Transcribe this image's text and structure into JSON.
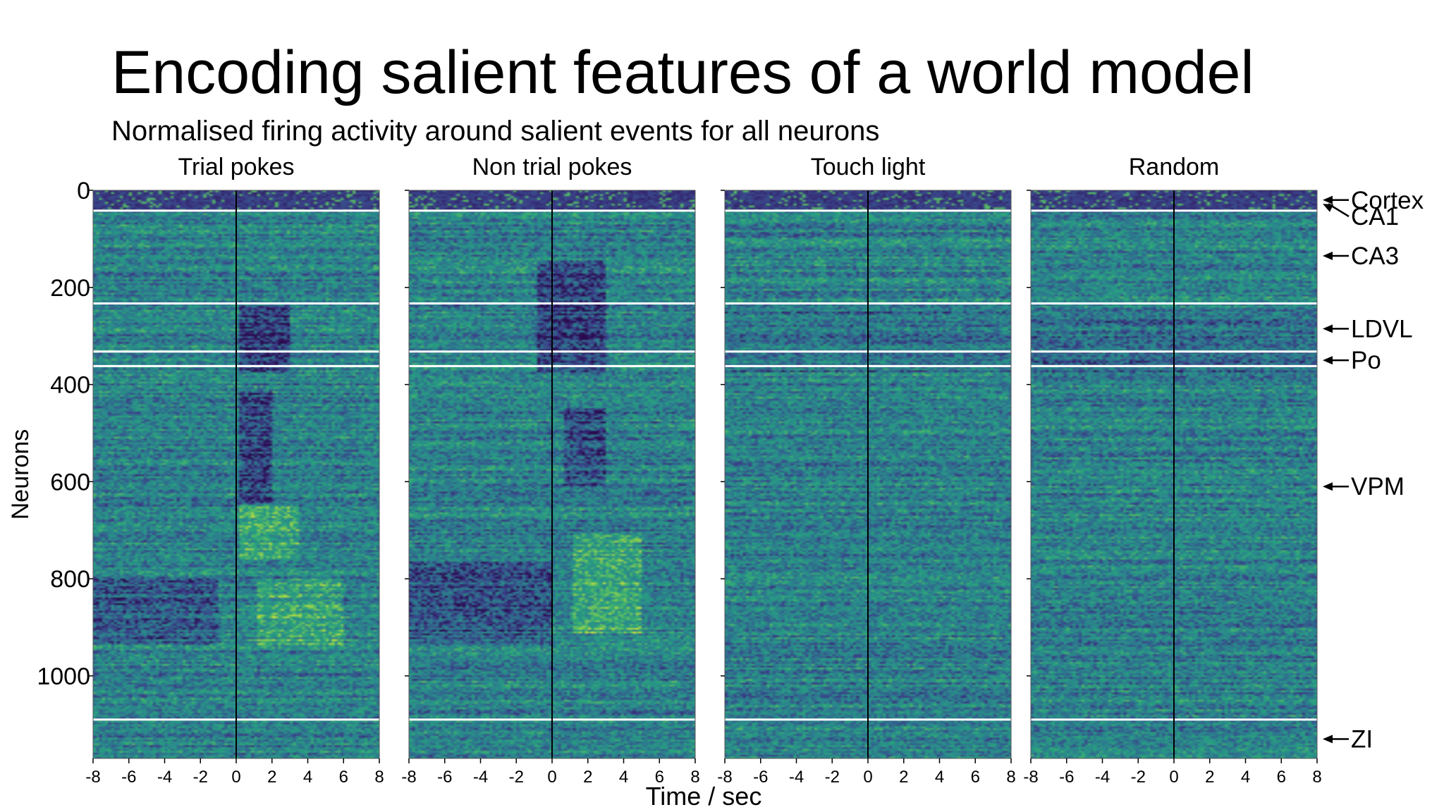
{
  "slide": {
    "title": "Encoding salient features of a world model",
    "subtitle": "Normalised firing activity around salient events for all neurons"
  },
  "chart_data": {
    "type": "heatmap",
    "title": "",
    "xlabel": "Time / sec",
    "ylabel": "Neurons",
    "xlim": [
      -8,
      8
    ],
    "ylim": [
      0,
      1170
    ],
    "x_ticks": [
      -8,
      -6,
      -4,
      -2,
      0,
      2,
      4,
      6,
      8
    ],
    "x_tick_labels": [
      "-8",
      "-6",
      "-4",
      "-2",
      "0",
      "2",
      "4",
      "6",
      "8"
    ],
    "y_ticks": [
      0,
      200,
      400,
      600,
      800,
      1000
    ],
    "y_tick_labels": [
      "0",
      "200",
      "400",
      "600",
      "800",
      "1000"
    ],
    "event_time": 0,
    "panels": [
      {
        "title": "Trial pokes"
      },
      {
        "title": "Non trial pokes"
      },
      {
        "title": "Touch light"
      },
      {
        "title": "Random"
      }
    ],
    "region_boundaries": [
      42,
      233,
      332,
      362,
      1090
    ],
    "region_labels": [
      {
        "label": "Cortex",
        "neuron": 20
      },
      {
        "label": "CA1",
        "neuron": 45
      },
      {
        "label": "CA3",
        "neuron": 135
      },
      {
        "label": "LDVL",
        "neuron": 285
      },
      {
        "label": "Po",
        "neuron": 350
      },
      {
        "label": "VPM",
        "neuron": 610
      },
      {
        "label": "ZI",
        "neuron": 1130
      }
    ],
    "colormap": [
      "#2a0b4f",
      "#3b3f88",
      "#2f6f8e",
      "#2a8b8c",
      "#28a37d",
      "#69c35c",
      "#d8e339"
    ]
  }
}
